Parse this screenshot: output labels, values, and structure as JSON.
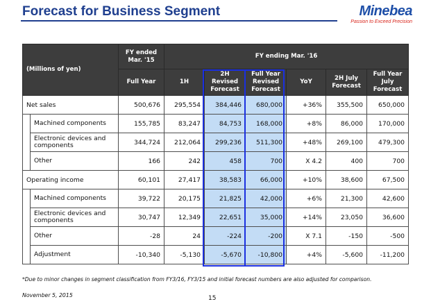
{
  "header": {
    "title": "Forecast for Business Segment",
    "logo_name": "Minebea",
    "logo_tagline": "Passion to Exceed Precision"
  },
  "table": {
    "units_label": "(Millions of yen)",
    "group_prior": "FY ended Mar. '15",
    "group_current": "FY ending Mar. '16",
    "columns": [
      "Full Year",
      "1H",
      "2H Revised Forecast",
      "Full Year Revised Forecast",
      "YoY",
      "2H July Forecast",
      "Full Year July Forecast"
    ],
    "rows": [
      {
        "label": "Net sales",
        "values": [
          "500,676",
          "295,554",
          "384,446",
          "680,000",
          "+36%",
          "355,500",
          "650,000"
        ]
      },
      {
        "label": "Machined components",
        "values": [
          "155,785",
          "83,247",
          "84,753",
          "168,000",
          "+8%",
          "86,000",
          "170,000"
        ]
      },
      {
        "label": "Electronic devices and components",
        "values": [
          "344,724",
          "212,064",
          "299,236",
          "511,300",
          "+48%",
          "269,100",
          "479,300"
        ]
      },
      {
        "label": "Other",
        "values": [
          "166",
          "242",
          "458",
          "700",
          "X 4.2",
          "400",
          "700"
        ]
      },
      {
        "label": "Operating income",
        "values": [
          "60,101",
          "27,417",
          "38,583",
          "66,000",
          "+10%",
          "38,600",
          "67,500"
        ]
      },
      {
        "label": "Machined components",
        "values": [
          "39,722",
          "20,175",
          "21,825",
          "42,000",
          "+6%",
          "21,300",
          "42,600"
        ]
      },
      {
        "label": "Electronic devices and components",
        "values": [
          "30,747",
          "12,349",
          "22,651",
          "35,000",
          "+14%",
          "23,050",
          "36,600"
        ]
      },
      {
        "label": "Other",
        "values": [
          "-28",
          "24",
          "-224",
          "-200",
          "X 7.1",
          "-150",
          "-500"
        ]
      },
      {
        "label": "Adjustment",
        "values": [
          "-10,340",
          "-5,130",
          "-5,670",
          "-10,800",
          "+4%",
          "-5,600",
          "-11,200"
        ]
      }
    ]
  },
  "footer": {
    "note": "*Due to minor changes in segment classification from FY3/16, FY3/15 and initial forecast numbers are also adjusted for comparison.",
    "date": "November 5, 2015",
    "page": "15"
  },
  "colors": {
    "title": "#1f3f8f",
    "logo": "#1e4fa8",
    "tagline": "#d9261c",
    "header_bg": "#3d3d3d",
    "highlight": "#c3dcf5",
    "box": "#1a2fe0"
  }
}
